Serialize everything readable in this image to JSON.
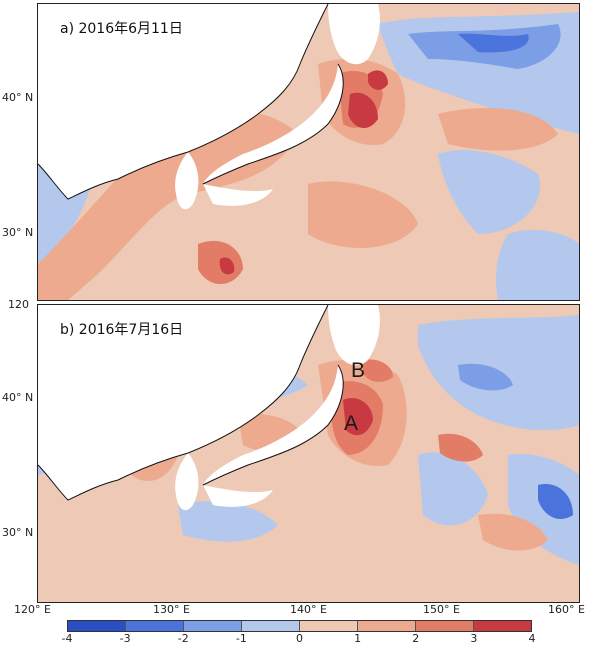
{
  "panels": [
    {
      "label": "a) 2016年6月11日"
    },
    {
      "label": "b) 2016年7月16日",
      "regions": [
        "A",
        "B"
      ]
    }
  ],
  "axes": {
    "lat_a": [
      "40° N",
      "30° N"
    ],
    "lat_b": [
      "40° N",
      "30° N"
    ],
    "lon": [
      "120° E",
      "130° E",
      "140° E",
      "150° E",
      "160° E"
    ],
    "corner_mid": "120"
  },
  "colorbar": {
    "ticks": [
      "-4",
      "-3",
      "-2",
      "-1",
      "0",
      "1",
      "2",
      "3",
      "4"
    ],
    "colors": [
      "#2a4fc4",
      "#4a74dc",
      "#7b9ee6",
      "#b3c8ec",
      "#edc9b6",
      "#eeaa8e",
      "#e27c66",
      "#c73a42"
    ]
  }
}
